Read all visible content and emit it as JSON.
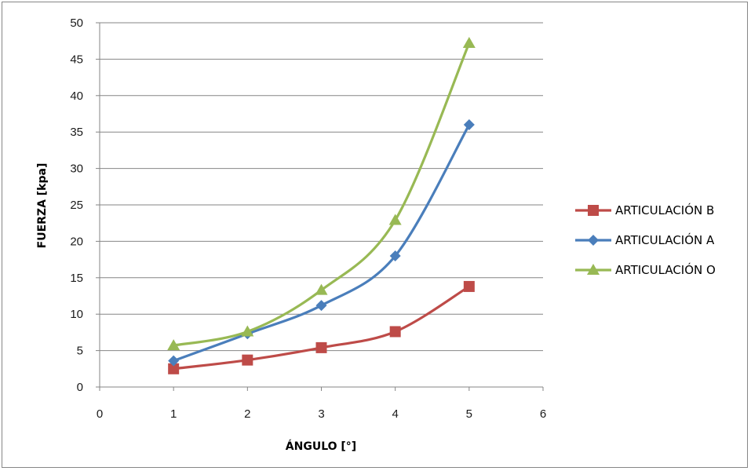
{
  "chart_data": {
    "type": "scatter",
    "title": "",
    "xlabel": "ÁNGULO [°]",
    "ylabel": "FUERZA [kpa]",
    "xlim": [
      0,
      6
    ],
    "ylim": [
      0,
      50
    ],
    "x_ticks": [
      "0",
      "1",
      "2",
      "3",
      "4",
      "5",
      "6"
    ],
    "y_ticks": [
      "0",
      "5",
      "10",
      "15",
      "20",
      "25",
      "30",
      "35",
      "40",
      "45",
      "50"
    ],
    "grid": "horizontal",
    "legend_position": "right",
    "smooth_lines": true,
    "series": [
      {
        "name": "ARTICULACIÓN B",
        "marker": "square",
        "color": "#be4b48",
        "x": [
          1,
          2,
          3,
          4,
          5
        ],
        "y": [
          2.5,
          3.7,
          5.4,
          7.6,
          13.8
        ]
      },
      {
        "name": "ARTICULACIÓN A",
        "marker": "diamond",
        "color": "#4a7ebb",
        "x": [
          1,
          2,
          3,
          4,
          5
        ],
        "y": [
          3.6,
          7.3,
          11.2,
          18.0,
          36.0
        ]
      },
      {
        "name": "ARTICULACIÓN O",
        "marker": "triangle",
        "color": "#98b954",
        "x": [
          1,
          2,
          3,
          4,
          5
        ],
        "y": [
          5.7,
          7.6,
          13.3,
          22.9,
          47.2
        ]
      }
    ]
  }
}
